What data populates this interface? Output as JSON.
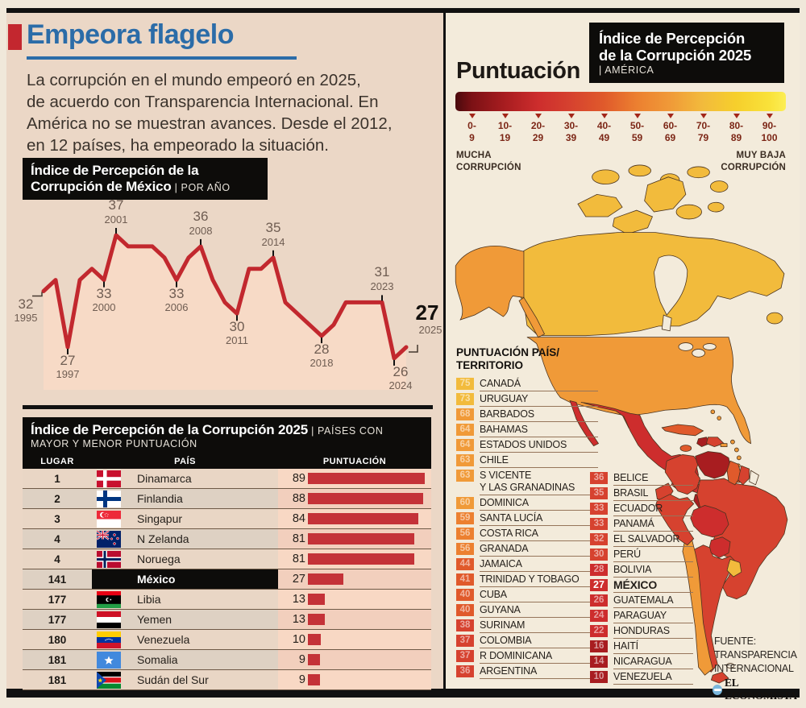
{
  "page": {
    "title": "Empeora flagelo",
    "intro": "La corrupción en el mundo empeoró en 2025,\nde acuerdo con Transparencia Internacional. En\nAmérica no se muestran avances. Desde el 2012,\nen 12 países, ha empeorado la situación."
  },
  "chart_data": [
    {
      "type": "line",
      "title_bold_line1": "Índice de Percepción de la",
      "title_bold_line2": "Corrupción de México",
      "title_tag": " | POR AÑO",
      "x": [
        1995,
        1996,
        1997,
        1998,
        1999,
        2000,
        2001,
        2002,
        2003,
        2004,
        2005,
        2006,
        2007,
        2008,
        2009,
        2010,
        2011,
        2012,
        2013,
        2014,
        2015,
        2016,
        2017,
        2018,
        2019,
        2020,
        2021,
        2022,
        2023,
        2024,
        2025
      ],
      "values": [
        32,
        33,
        27,
        33,
        34,
        33,
        37,
        36,
        36,
        36,
        35,
        33,
        35,
        36,
        33,
        31,
        30,
        34,
        34,
        35,
        31,
        30,
        29,
        28,
        29,
        31,
        31,
        31,
        31,
        26,
        27
      ],
      "labeled_points": [
        {
          "year": 1995,
          "value": 32
        },
        {
          "year": 1997,
          "value": 27
        },
        {
          "year": 2000,
          "value": 33
        },
        {
          "year": 2001,
          "value": 37
        },
        {
          "year": 2006,
          "value": 33
        },
        {
          "year": 2008,
          "value": 36
        },
        {
          "year": 2011,
          "value": 30
        },
        {
          "year": 2014,
          "value": 35
        },
        {
          "year": 2018,
          "value": 28
        },
        {
          "year": 2023,
          "value": 31
        },
        {
          "year": 2024,
          "value": 26
        },
        {
          "year": 2025,
          "value": 27
        }
      ],
      "ylim": [
        24,
        39
      ],
      "line_color": "#c2282e",
      "fill_color": "#f7dac6"
    },
    {
      "type": "bar-table",
      "title_bold": "Índice de Percepción de la Corrupción 2025",
      "title_tag_line1": " | PAÍSES CON",
      "title_tag_line2": "MAYOR Y MENOR PUNTUACIÓN",
      "columns": [
        "LUGAR",
        "PAÍS",
        "PUNTUACIÓN"
      ],
      "bar_color": "#c43238",
      "bar_max": 100,
      "rows": [
        {
          "rank": "1",
          "country": "Dinamarca",
          "score": 89,
          "flag": "dk",
          "highlight": false
        },
        {
          "rank": "2",
          "country": "Finlandia",
          "score": 88,
          "flag": "fi",
          "highlight": false
        },
        {
          "rank": "3",
          "country": "Singapur",
          "score": 84,
          "flag": "sg",
          "highlight": false
        },
        {
          "rank": "4",
          "country": "N Zelanda",
          "score": 81,
          "flag": "nz",
          "highlight": false
        },
        {
          "rank": "4",
          "country": "Noruega",
          "score": 81,
          "flag": "no",
          "highlight": false
        },
        {
          "rank": "141",
          "country": "México",
          "score": 27,
          "flag": "",
          "highlight": true
        },
        {
          "rank": "177",
          "country": "Libia",
          "score": 13,
          "flag": "ly",
          "highlight": false
        },
        {
          "rank": "177",
          "country": "Yemen",
          "score": 13,
          "flag": "ye",
          "highlight": false
        },
        {
          "rank": "180",
          "country": "Venezuela",
          "score": 10,
          "flag": "ve",
          "highlight": false
        },
        {
          "rank": "181",
          "country": "Somalia",
          "score": 9,
          "flag": "so",
          "highlight": false
        },
        {
          "rank": "181",
          "country": "Sudán del Sur",
          "score": 9,
          "flag": "ss",
          "highlight": false
        }
      ]
    },
    {
      "type": "choropleth",
      "title_bold_line1": "Índice de Percepción",
      "title_bold_line2": "de la Corrupción 2025",
      "title_tag": "| AMÉRICA",
      "scale_title": "Puntuación",
      "scale_left_label": "MUCHA\nCORRUPCIÓN",
      "scale_right_label": "MUY BAJA\nCORRUPCIÓN",
      "buckets": [
        "0-\n9",
        "10-\n19",
        "20-\n29",
        "30-\n39",
        "40-\n49",
        "50-\n59",
        "60-\n69",
        "70-\n79",
        "80-\n89",
        "90-\n100"
      ],
      "bucket_colors": [
        "#7c1115",
        "#a81d20",
        "#cd2d2d",
        "#d6422f",
        "#e05a2b",
        "#ec8030",
        "#f09a38",
        "#f2bb3c",
        "#f6cf2c",
        "#f9e23a"
      ],
      "list_header": "PUNTUACIÓN PAÍS/\nTERRITORIO",
      "left_list": [
        {
          "score": 75,
          "name": "CANADÁ"
        },
        {
          "score": 73,
          "name": "URUGUAY"
        },
        {
          "score": 68,
          "name": "BARBADOS"
        },
        {
          "score": 64,
          "name": "BAHAMAS"
        },
        {
          "score": 64,
          "name": "ESTADOS UNIDOS"
        },
        {
          "score": 63,
          "name": "CHILE"
        },
        {
          "score": 63,
          "name": "S VICENTE",
          "name2": "Y LAS GRANADINAS"
        },
        {
          "score": 60,
          "name": "DOMINICA"
        },
        {
          "score": 59,
          "name": "SANTA LUCÍA"
        },
        {
          "score": 56,
          "name": "COSTA RICA"
        },
        {
          "score": 56,
          "name": "GRANADA"
        },
        {
          "score": 44,
          "name": "JAMAICA"
        },
        {
          "score": 41,
          "name": "TRINIDAD Y TOBAGO"
        },
        {
          "score": 40,
          "name": "CUBA"
        },
        {
          "score": 40,
          "name": "GUYANA"
        },
        {
          "score": 38,
          "name": "SURINAM"
        },
        {
          "score": 37,
          "name": "COLOMBIA"
        },
        {
          "score": 37,
          "name": "R DOMINICANA"
        },
        {
          "score": 36,
          "name": "ARGENTINA"
        }
      ],
      "right_list": [
        {
          "score": 36,
          "name": "BELICE"
        },
        {
          "score": 35,
          "name": "BRASIL"
        },
        {
          "score": 33,
          "name": "ECUADOR"
        },
        {
          "score": 33,
          "name": "PANAMÁ"
        },
        {
          "score": 32,
          "name": "EL SALVADOR"
        },
        {
          "score": 30,
          "name": "PERÚ"
        },
        {
          "score": 28,
          "name": "BOLIVIA"
        },
        {
          "score": 27,
          "name": "MÉXICO",
          "highlight": true
        },
        {
          "score": 26,
          "name": "GUATEMALA"
        },
        {
          "score": 24,
          "name": "PARAGUAY"
        },
        {
          "score": 22,
          "name": "HONDURAS"
        },
        {
          "score": 16,
          "name": "HAITÍ"
        },
        {
          "score": 14,
          "name": "NICARAGUA"
        },
        {
          "score": 10,
          "name": "VENEZUELA"
        }
      ],
      "map_regions": [
        {
          "id": "arctic-islands",
          "score": 75
        },
        {
          "id": "canada",
          "score": 75
        },
        {
          "id": "alaska",
          "score": 64
        },
        {
          "id": "usa",
          "score": 64
        },
        {
          "id": "mexico",
          "score": 27
        },
        {
          "id": "baja",
          "score": 27
        },
        {
          "id": "yucatan",
          "score": 27
        },
        {
          "id": "guatemala",
          "score": 26
        },
        {
          "id": "belize",
          "score": 36
        },
        {
          "id": "honduras",
          "score": 22
        },
        {
          "id": "nicaragua",
          "score": 14
        },
        {
          "id": "costa-rica",
          "score": 56
        },
        {
          "id": "panama",
          "score": 33
        },
        {
          "id": "cuba",
          "score": 40
        },
        {
          "id": "jamaica",
          "score": 44
        },
        {
          "id": "haiti",
          "score": 16
        },
        {
          "id": "dominicana",
          "score": 37
        },
        {
          "id": "bahamas",
          "score": 64
        },
        {
          "id": "antillas",
          "score": 60
        },
        {
          "id": "trinidad",
          "score": 41
        },
        {
          "id": "colombia",
          "score": 37
        },
        {
          "id": "venezuela",
          "score": 10,
          "outline": "white"
        },
        {
          "id": "guyana",
          "score": 40
        },
        {
          "id": "surinam",
          "score": 38
        },
        {
          "id": "guayana-fr",
          "score": null
        },
        {
          "id": "ecuador",
          "score": 33
        },
        {
          "id": "peru",
          "score": 30
        },
        {
          "id": "brasil",
          "score": 35
        },
        {
          "id": "bolivia",
          "score": 28,
          "outline": "white"
        },
        {
          "id": "paraguay",
          "score": 24,
          "outline": "white"
        },
        {
          "id": "chile",
          "score": 63
        },
        {
          "id": "argentina",
          "score": 36
        },
        {
          "id": "uruguay",
          "score": 73
        },
        {
          "id": "tierra-fuego",
          "score": 36
        },
        {
          "id": "malvinas",
          "score": null
        }
      ],
      "source": "FUENTE:\nTRANSPARENCIA\nINTERNACIONAL",
      "logo_text": "EL ECONOMISTA"
    }
  ]
}
